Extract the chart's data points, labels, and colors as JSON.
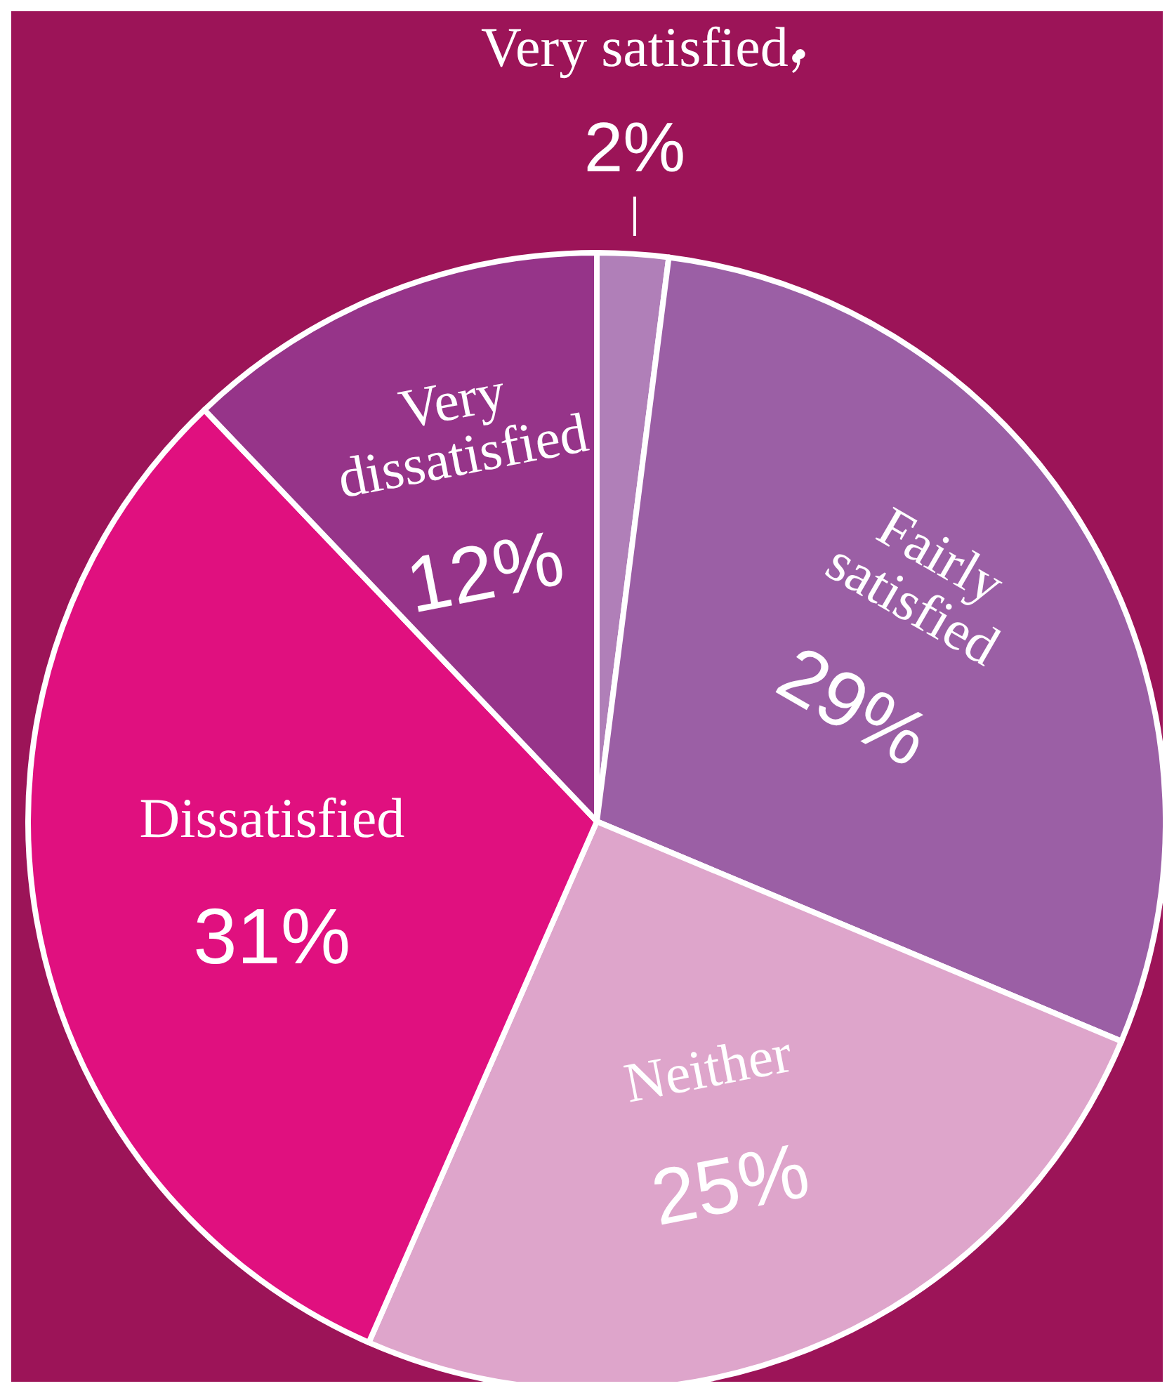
{
  "chart_data": {
    "type": "pie",
    "categories": [
      "Very satisfied",
      "Fairly satisfied",
      "Neither",
      "Dissatisfied",
      "Very dissatisfied"
    ],
    "values": [
      2,
      29,
      25,
      31,
      12
    ],
    "colors": [
      "#b07fb8",
      "#9b5fa5",
      "#dea5cb",
      "#e0107f",
      "#963489"
    ],
    "value_labels": [
      "2%",
      "29%",
      "25%",
      "31%",
      "12%"
    ]
  }
}
